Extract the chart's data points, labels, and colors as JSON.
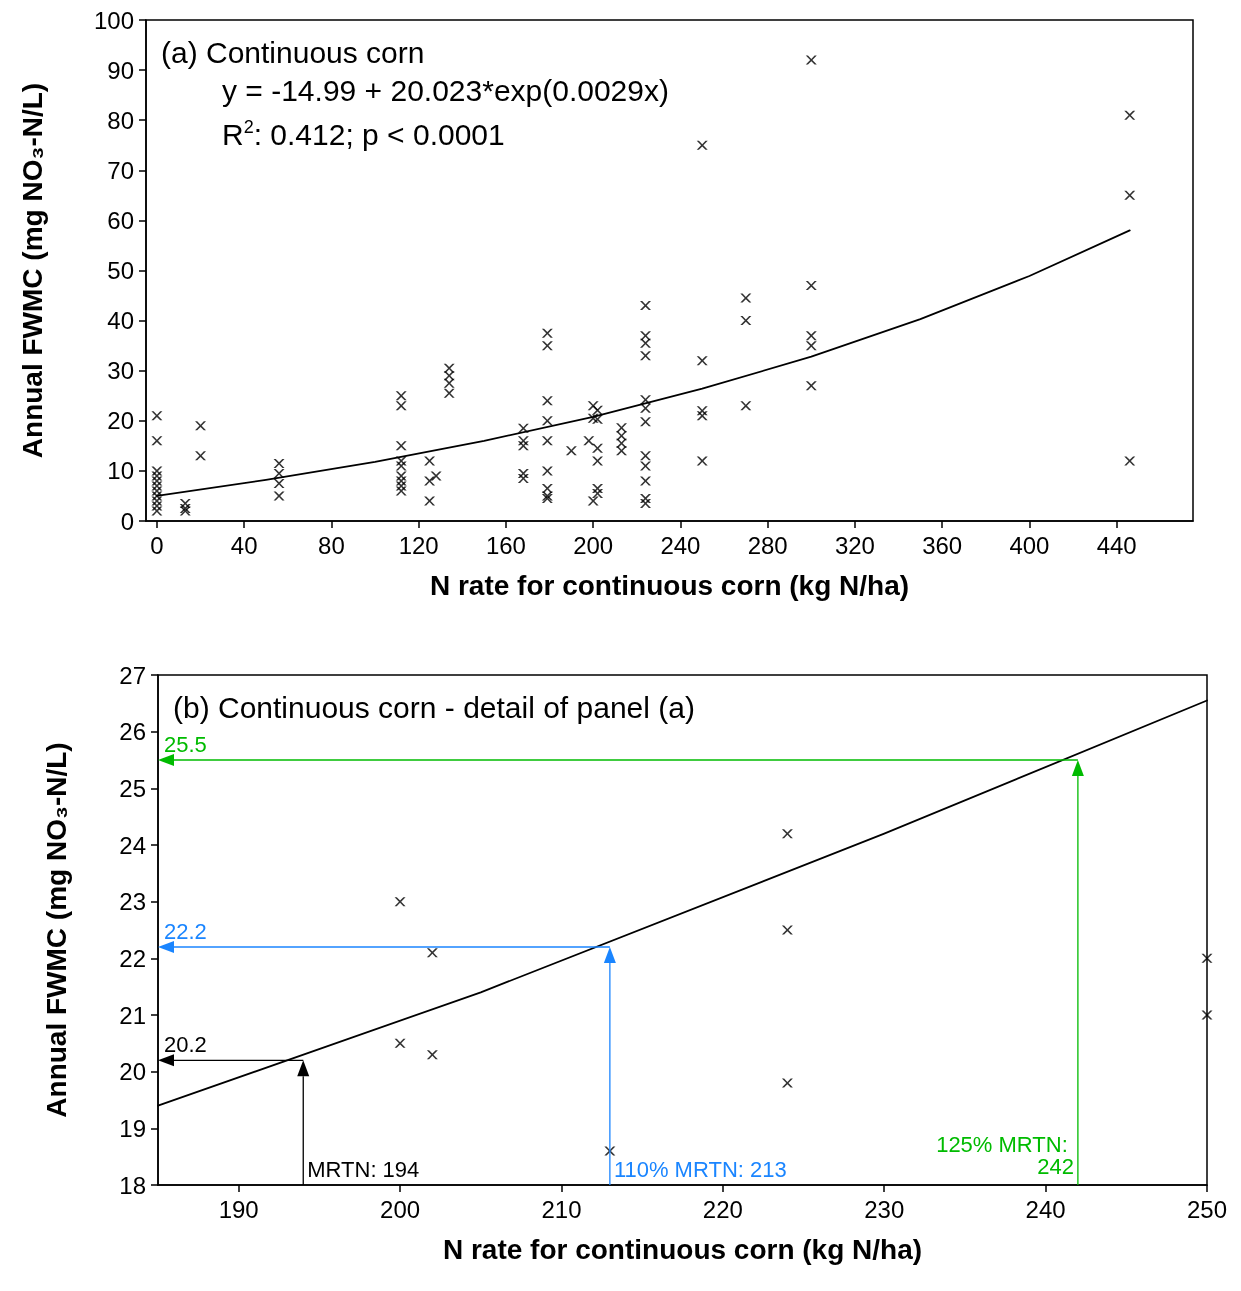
{
  "chart_data": [
    {
      "type": "scatter",
      "title": "(a) Continuous corn",
      "xlabel": "N rate for continuous corn (kg N/ha)",
      "ylabel": "Annual FWMC (mg NO₃-N/L)",
      "annotations": [
        "y = -14.99 + 20.023*exp(0.0029x)",
        "R$^{2}$: 0.412; p < 0.0001"
      ],
      "series": [
        {
          "type": "scatter",
          "color": "#000000",
          "marker": "cross",
          "x": [
            0,
            0,
            0,
            0,
            0,
            0,
            0,
            0,
            0,
            0,
            0,
            13,
            13,
            13,
            20,
            20,
            56,
            56,
            56,
            56,
            112,
            112,
            112,
            112,
            112,
            112,
            112,
            112,
            112,
            125,
            125,
            125,
            128,
            134,
            134,
            134,
            134,
            168,
            168,
            168,
            168,
            168,
            179,
            179,
            179,
            179,
            179,
            179,
            179,
            179,
            179,
            190,
            198,
            200,
            200,
            200,
            202,
            202,
            202,
            202,
            202,
            202,
            213,
            213,
            213,
            213,
            224,
            224,
            224,
            224,
            224,
            224,
            224,
            224,
            224,
            224,
            224,
            224,
            250,
            250,
            250,
            250,
            250,
            270,
            270,
            270,
            300,
            300,
            300,
            300,
            300,
            446,
            446,
            446
          ],
          "values": [
            21,
            16,
            10,
            9,
            8,
            7,
            6,
            5,
            4,
            3,
            2,
            3.5,
            2.5,
            2,
            19,
            13,
            11.5,
            9.5,
            7.5,
            5,
            25,
            23,
            15,
            12,
            11,
            9,
            8,
            7,
            6,
            12,
            8,
            4,
            9,
            30.5,
            29,
            27.5,
            25.5,
            18.5,
            16,
            15,
            9.5,
            8.5,
            37.5,
            35,
            24,
            20,
            16,
            10,
            6.5,
            5,
            4.5,
            14,
            16,
            23,
            20.5,
            4,
            22.1,
            20.3,
            14.5,
            12,
            6.5,
            5.5,
            18.6,
            17,
            15.5,
            14,
            43,
            37,
            35.5,
            33,
            24.2,
            22.5,
            19.8,
            13,
            11,
            8,
            4.5,
            3.5,
            75,
            32,
            22,
            21,
            12,
            44.5,
            40,
            23,
            92,
            47,
            37,
            35,
            27,
            81,
            65,
            12
          ]
        },
        {
          "type": "line",
          "color": "#000000",
          "marker": "none",
          "line_style": "solid",
          "x": [
            0,
            50,
            100,
            150,
            200,
            250,
            300,
            350,
            400,
            446
          ],
          "values": [
            5.0,
            8.2,
            11.8,
            16.0,
            20.8,
            26.4,
            32.8,
            40.3,
            48.9,
            58.0
          ]
        }
      ],
      "xlim": [
        -5,
        475
      ],
      "xticks": [
        0,
        40,
        80,
        120,
        160,
        200,
        240,
        280,
        320,
        360,
        400,
        440
      ],
      "ylim": [
        0,
        100
      ],
      "yticks": [
        0,
        10,
        20,
        30,
        40,
        50,
        60,
        70,
        80,
        90,
        100
      ],
      "grid": false
    },
    {
      "type": "scatter",
      "title": "(b) Continuous corn - detail of panel (a)",
      "xlabel": "N rate for continuous corn (kg N/ha)",
      "ylabel": "Annual FWMC (mg NO₃-N/L)",
      "series": [
        {
          "type": "scatter",
          "color": "#000000",
          "marker": "cross",
          "x": [
            200,
            200,
            202,
            202,
            213,
            224,
            224,
            224,
            250,
            250
          ],
          "values": [
            23,
            20.5,
            22.1,
            20.3,
            18.6,
            24.2,
            22.5,
            19.8,
            22,
            21
          ]
        },
        {
          "type": "line",
          "color": "#000000",
          "marker": "none",
          "line_style": "solid",
          "x": [
            185,
            205,
            230,
            250
          ],
          "values": [
            19.4,
            21.4,
            24.2,
            26.55
          ]
        }
      ],
      "ref_lines": [
        {
          "axis": "x",
          "value": 194,
          "label": "MRTN: 194",
          "color": "#000000"
        },
        {
          "axis": "y",
          "value": 20.2,
          "label": "20.2",
          "color": "#000000"
        },
        {
          "axis": "x",
          "value": 213,
          "label": "110% MRTN: 213",
          "color": "#1a85ff"
        },
        {
          "axis": "y",
          "value": 22.2,
          "label": "22.2",
          "color": "#1a85ff"
        },
        {
          "axis": "x",
          "value": 242,
          "label": "125% MRTN: 242",
          "color": "#00bb00"
        },
        {
          "axis": "y",
          "value": 25.5,
          "label": "25.5",
          "color": "#00bb00"
        }
      ],
      "xlim": [
        185,
        250
      ],
      "xticks": [
        190,
        200,
        210,
        220,
        230,
        240,
        250
      ],
      "ylim": [
        18,
        27
      ],
      "yticks": [
        18,
        19,
        20,
        21,
        22,
        23,
        24,
        25,
        26,
        27
      ],
      "grid": false
    }
  ]
}
